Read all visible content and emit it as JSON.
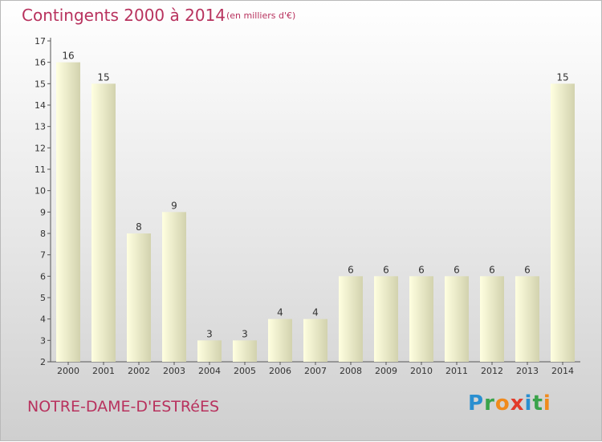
{
  "header": {
    "title": "Contingents 2000 à 2014",
    "subtitle": "(en milliers d'€)"
  },
  "footer": {
    "commune": "NOTRE-DAME-D'ESTRéES"
  },
  "logo": {
    "text": "Proxiti",
    "letters": [
      {
        "char": "P",
        "color": "#2a8fd0"
      },
      {
        "char": "r",
        "color": "#3aa34a"
      },
      {
        "char": "o",
        "color": "#f08a1c"
      },
      {
        "char": "x",
        "color": "#e23b2a"
      },
      {
        "char": "i",
        "color": "#2a8fd0"
      },
      {
        "char": "t",
        "color": "#3aa34a"
      },
      {
        "char": "i",
        "color": "#f08a1c"
      }
    ]
  },
  "colors": {
    "accent": "#b8325e",
    "bar_light": "#ffffe0",
    "bar_dark": "#d2d2ae",
    "axis": "#555555"
  },
  "chart_data": {
    "type": "bar",
    "categories": [
      "2000",
      "2001",
      "2002",
      "2003",
      "2004",
      "2005",
      "2006",
      "2007",
      "2008",
      "2009",
      "2010",
      "2011",
      "2012",
      "2013",
      "2014"
    ],
    "values": [
      16,
      15,
      8,
      9,
      3,
      3,
      4,
      4,
      6,
      6,
      6,
      6,
      6,
      6,
      15
    ],
    "ylim": [
      2,
      17
    ],
    "yticks": [
      2,
      3,
      4,
      5,
      6,
      7,
      8,
      9,
      10,
      11,
      12,
      13,
      14,
      15,
      16,
      17
    ],
    "grid": false,
    "data_labels": true
  }
}
